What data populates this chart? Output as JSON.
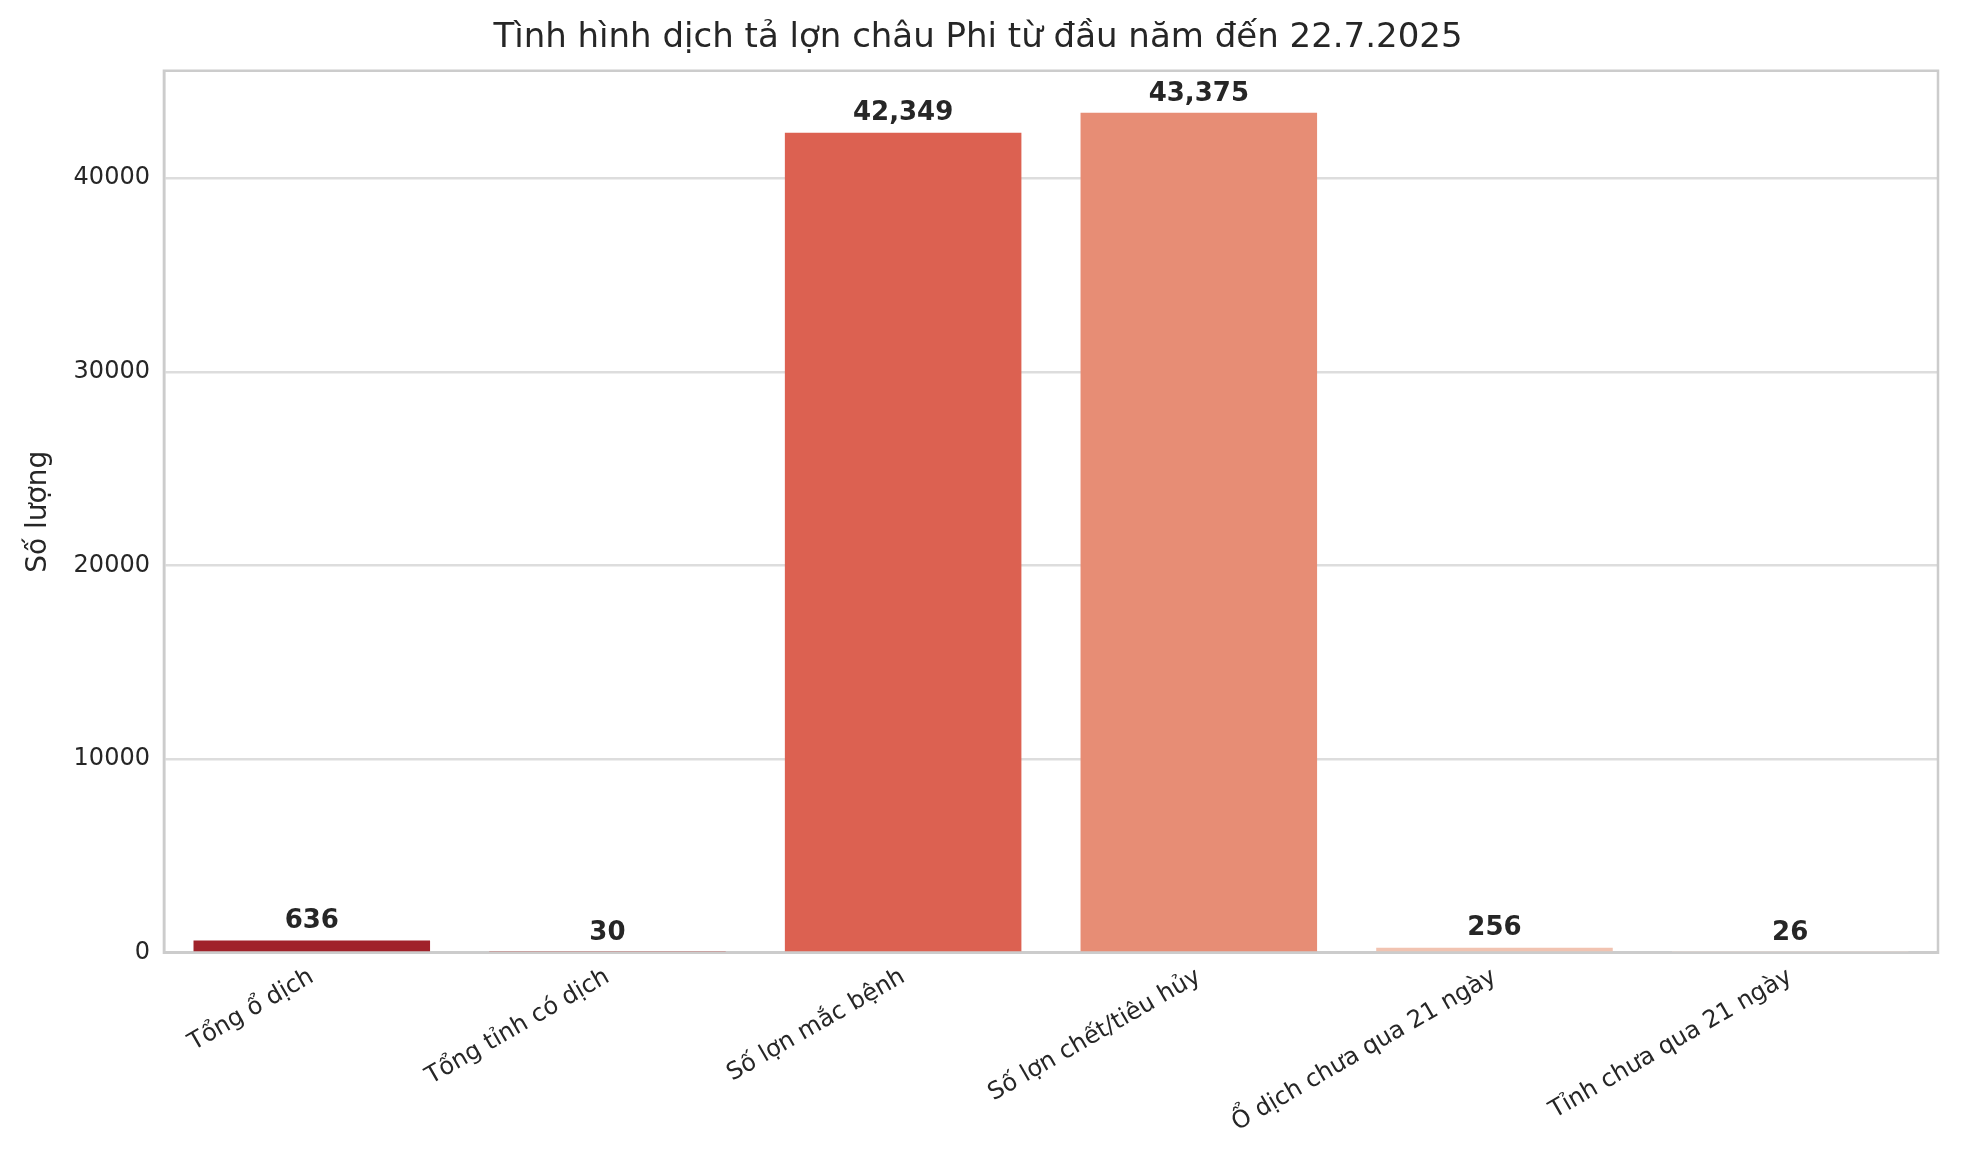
{
  "chart_data": {
    "type": "bar",
    "title": "Tình hình dịch tả lợn châu Phi từ đầu năm đến 22.7.2025",
    "ylabel": "Số lượng",
    "categories": [
      "Tổng ổ dịch",
      "Tổng tỉnh có dịch",
      "Số lợn mắc bệnh",
      "Số lợn chết/tiêu hủy",
      "Ổ dịch chưa qua 21 ngày",
      "Tỉnh chưa qua 21 ngày"
    ],
    "values": [
      636,
      30,
      42349,
      43375,
      256,
      26
    ],
    "value_labels": [
      "636",
      "30",
      "42,349",
      "43,375",
      "256",
      "26"
    ],
    "colors": [
      "#a0222a",
      "#c1332f",
      "#dc6151",
      "#e78d75",
      "#f1c3b1",
      "#fbe3d7"
    ],
    "ylim": [
      0,
      45544
    ],
    "yticks": [
      0,
      10000,
      20000,
      30000,
      40000
    ],
    "grid": "y"
  }
}
